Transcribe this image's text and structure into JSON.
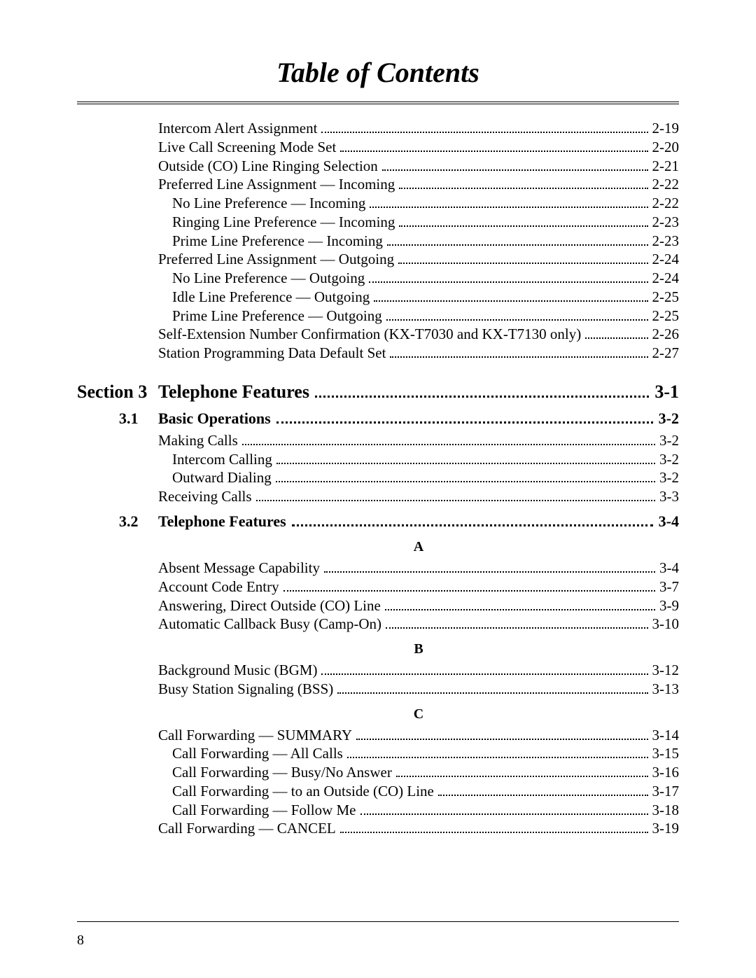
{
  "title": "Table of Contents",
  "entries_top": [
    {
      "label": "Intercom Alert Assignment",
      "page": "2-19",
      "indent": 0
    },
    {
      "label": "Live Call Screening Mode Set",
      "page": "2-20",
      "indent": 0
    },
    {
      "label": "Outside (CO) Line Ringing Selection",
      "page": "2-21",
      "indent": 0
    },
    {
      "label": "Preferred Line Assignment — Incoming",
      "page": "2-22",
      "indent": 0
    },
    {
      "label": "No Line Preference — Incoming",
      "page": "2-22",
      "indent": 1
    },
    {
      "label": "Ringing Line Preference — Incoming",
      "page": "2-23",
      "indent": 1
    },
    {
      "label": "Prime Line Preference — Incoming",
      "page": "2-23",
      "indent": 1
    },
    {
      "label": "Preferred Line Assignment — Outgoing",
      "page": "2-24",
      "indent": 0
    },
    {
      "label": "No Line Preference — Outgoing",
      "page": "2-24",
      "indent": 1
    },
    {
      "label": "Idle Line Preference — Outgoing",
      "page": "2-25",
      "indent": 1
    },
    {
      "label": "Prime Line Preference — Outgoing",
      "page": "2-25",
      "indent": 1
    },
    {
      "label": "Self-Extension Number Confirmation (KX-T7030 and KX-T7130 only)",
      "page": "2-26",
      "indent": 0
    },
    {
      "label": "Station Programming Data Default Set",
      "page": "2-27",
      "indent": 0
    }
  ],
  "section": {
    "num": "Section 3",
    "title": "Telephone Features",
    "page": "3-1"
  },
  "sub31": {
    "num": "3.1",
    "title": "Basic Operations",
    "page": "3-2"
  },
  "entries_31": [
    {
      "label": "Making Calls",
      "page": "3-2",
      "indent": 0
    },
    {
      "label": "Intercom Calling",
      "page": "3-2",
      "indent": 1
    },
    {
      "label": "Outward Dialing",
      "page": "3-2",
      "indent": 1
    },
    {
      "label": "Receiving Calls",
      "page": "3-3",
      "indent": 0
    }
  ],
  "sub32": {
    "num": "3.2",
    "title": "Telephone Features",
    "page": "3-4"
  },
  "letter_A": "A",
  "entries_A": [
    {
      "label": "Absent Message Capability",
      "page": "3-4",
      "indent": 0
    },
    {
      "label": "Account Code Entry",
      "page": "3-7",
      "indent": 0
    },
    {
      "label": "Answering, Direct Outside (CO) Line",
      "page": "3-9",
      "indent": 0
    },
    {
      "label": "Automatic Callback Busy (Camp-On)",
      "page": "3-10",
      "indent": 0
    }
  ],
  "letter_B": "B",
  "entries_B": [
    {
      "label": "Background Music (BGM)",
      "page": "3-12",
      "indent": 0
    },
    {
      "label": "Busy Station Signaling (BSS)",
      "page": "3-13",
      "indent": 0
    }
  ],
  "letter_C": "C",
  "entries_C": [
    {
      "label": "Call Forwarding — SUMMARY",
      "page": "3-14",
      "indent": 0
    },
    {
      "label": "Call Forwarding — All Calls",
      "page": "3-15",
      "indent": 1
    },
    {
      "label": "Call Forwarding — Busy/No Answer",
      "page": "3-16",
      "indent": 1
    },
    {
      "label": "Call Forwarding — to an Outside (CO) Line",
      "page": "3-17",
      "indent": 1
    },
    {
      "label": "Call Forwarding — Follow Me",
      "page": "3-18",
      "indent": 1
    },
    {
      "label": "Call Forwarding — CANCEL",
      "page": "3-19",
      "indent": 0
    }
  ],
  "page_number": "8"
}
